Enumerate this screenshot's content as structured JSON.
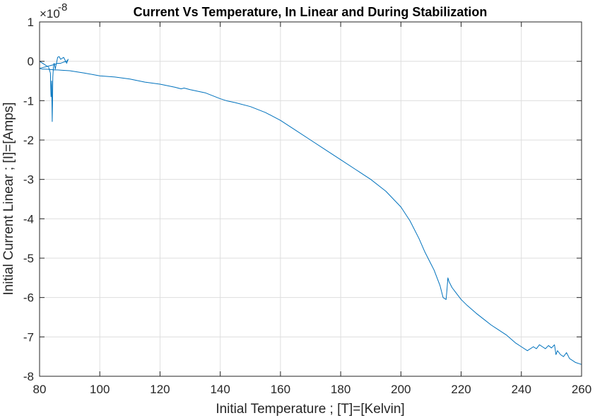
{
  "chart_data": {
    "type": "line",
    "title": "Current Vs Temperature, In Linear and During Stabilization",
    "xlabel": "Initial Temperature ; [T]=[Kelvin]",
    "ylabel": "Initial Current Linear ; [I]=[Amps]",
    "y_exponent_base": "×10",
    "y_exponent_power": "-8",
    "xlim": [
      80,
      260
    ],
    "ylim": [
      -8,
      1
    ],
    "grid": true,
    "x_ticks": [
      80,
      100,
      120,
      140,
      160,
      180,
      200,
      220,
      240,
      260
    ],
    "x_tick_labels": [
      "80",
      "100",
      "120",
      "140",
      "160",
      "180",
      "200",
      "220",
      "240",
      "260"
    ],
    "y_ticks": [
      -8,
      -7,
      -6,
      -5,
      -4,
      -3,
      -2,
      -1,
      0,
      1
    ],
    "y_tick_labels": [
      "-8",
      "-7",
      "-6",
      "-5",
      "-4",
      "-3",
      "-2",
      "-1",
      "0",
      "1"
    ],
    "series": [
      {
        "color": "#0072BD",
        "x": [
          80.0,
          81.0,
          82.0,
          83.0,
          83.6,
          83.8,
          84.0,
          84.2,
          84.4,
          84.6,
          84.8,
          85.0,
          85.2,
          86.0,
          86.5,
          87.0,
          88.0,
          89.0,
          89.5,
          89.0,
          88.0,
          87.0,
          86.0,
          85.0,
          84.0,
          83.0,
          82.0,
          81.0,
          80.0,
          81.0,
          82.0,
          84.0,
          85.0,
          86.0,
          88.0,
          90.0,
          95.0,
          100.0,
          105.0,
          110.0,
          115.0,
          120.0,
          125.0,
          127.0,
          128.0,
          130.0,
          135.0,
          140.0,
          142.0,
          145.0,
          150.0,
          155.0,
          160.0,
          165.0,
          170.0,
          175.0,
          180.0,
          185.0,
          190.0,
          195.0,
          200.0,
          203.0,
          206.0,
          208.0,
          210.0,
          211.0,
          212.0,
          213.0,
          214.0,
          215.0,
          215.3,
          215.6,
          216.0,
          217.0,
          218.0,
          220.0,
          222.0,
          225.0,
          228.0,
          230.0,
          232.0,
          235.0,
          238.0,
          240.0,
          242.0,
          244.0,
          245.0,
          246.0,
          247.0,
          248.0,
          249.0,
          250.0,
          251.0,
          251.5,
          252.0,
          253.0,
          254.0,
          255.0,
          256.0,
          257.0,
          258.0,
          260.0
        ],
        "y": [
          0.0,
          -0.05,
          -0.1,
          -0.15,
          -0.3,
          -0.9,
          -0.5,
          -1.53,
          -0.4,
          -0.15,
          -0.05,
          -0.1,
          -0.2,
          0.1,
          0.12,
          0.05,
          0.1,
          -0.05,
          0.05,
          0.0,
          -0.02,
          -0.05,
          -0.05,
          -0.08,
          -0.1,
          -0.12,
          -0.14,
          -0.16,
          -0.18,
          -0.2,
          -0.2,
          -0.21,
          -0.22,
          -0.22,
          -0.23,
          -0.24,
          -0.3,
          -0.37,
          -0.4,
          -0.45,
          -0.53,
          -0.58,
          -0.66,
          -0.7,
          -0.68,
          -0.72,
          -0.8,
          -0.95,
          -1.0,
          -1.05,
          -1.15,
          -1.3,
          -1.5,
          -1.75,
          -2.0,
          -2.25,
          -2.5,
          -2.75,
          -3.0,
          -3.3,
          -3.7,
          -4.05,
          -4.5,
          -4.85,
          -5.15,
          -5.3,
          -5.5,
          -5.7,
          -6.0,
          -6.05,
          -5.8,
          -5.5,
          -5.6,
          -5.75,
          -5.85,
          -6.05,
          -6.2,
          -6.4,
          -6.58,
          -6.7,
          -6.8,
          -6.95,
          -7.15,
          -7.25,
          -7.35,
          -7.25,
          -7.3,
          -7.2,
          -7.25,
          -7.3,
          -7.22,
          -7.28,
          -7.2,
          -7.45,
          -7.35,
          -7.45,
          -7.5,
          -7.4,
          -7.55,
          -7.6,
          -7.65,
          -7.7
        ]
      }
    ]
  }
}
